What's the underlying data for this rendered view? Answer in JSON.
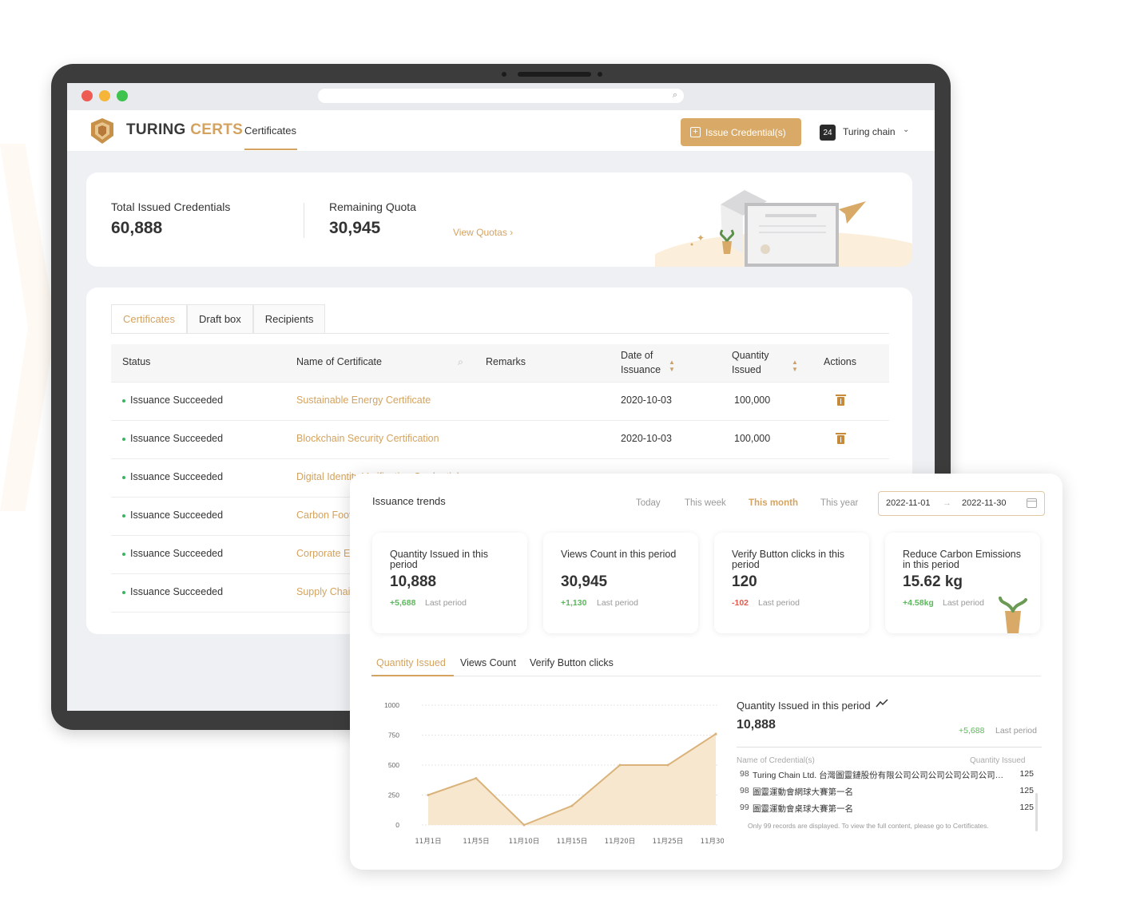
{
  "brand": {
    "name_part1": "TURING ",
    "name_part2": "CERTS",
    "accent_color": "#d4a35f"
  },
  "header": {
    "nav_tab": "Certificates",
    "issue_button": "Issue Credential(s)",
    "org_badge": "24",
    "org_name": "Turing chain"
  },
  "summary": {
    "total_label": "Total Issued Credentials",
    "total_value": "60,888",
    "remaining_label": "Remaining Quota",
    "remaining_value": "30,945",
    "view_quotas": "View Quotas ›"
  },
  "tabs": [
    "Certificates",
    "Draft box",
    "Recipients"
  ],
  "table": {
    "headers": {
      "status": "Status",
      "name": "Name of Certificate",
      "remarks": "Remarks",
      "date_line1": "Date of",
      "date_line2": "Issuance",
      "qty_line1": "Quantity",
      "qty_line2": "Issued",
      "actions": "Actions"
    },
    "rows": [
      {
        "status": "Issuance Succeeded",
        "name": "Sustainable Energy Certificate",
        "date": "2020-10-03",
        "qty": "100,000"
      },
      {
        "status": "Issuance Succeeded",
        "name": "Blockchain Security Certification",
        "date": "2020-10-03",
        "qty": "100,000"
      },
      {
        "status": "Issuance Succeeded",
        "name": "Digital Identity Verification Credential"
      },
      {
        "status": "Issuance Succeeded",
        "name": "Carbon Footprint Certificate"
      },
      {
        "status": "Issuance Succeeded",
        "name": "Corporate Excellence Award"
      },
      {
        "status": "Issuance Succeeded",
        "name": "Supply Chain Certificate"
      }
    ]
  },
  "panel": {
    "title": "Issuance trends",
    "ranges": [
      "Today",
      "This week",
      "This month",
      "This year"
    ],
    "active_range": "This month",
    "date_from": "2022-11-01",
    "date_sep": "→",
    "date_to": "2022-11-30",
    "metrics": [
      {
        "label": "Quantity Issued in this period",
        "value": "10,888",
        "delta": "+5,688",
        "last": "Last period",
        "delta_color": "#5cb85c"
      },
      {
        "label": "Views Count in this period",
        "value": "30,945",
        "delta": "+1,130",
        "last": "Last period",
        "delta_color": "#5cb85c"
      },
      {
        "label": "Verify Button clicks in this period",
        "value": "120",
        "delta": "-102",
        "last": "Last period",
        "delta_color": "#e05a4e"
      },
      {
        "label": "Reduce Carbon Emissions in this period",
        "value": "15.62 kg",
        "delta": "+4.58kg",
        "last": "Last period",
        "delta_color": "#5cb85c"
      }
    ],
    "chart_tabs": [
      "Quantity Issued",
      "Views Count",
      "Verify Button clicks"
    ],
    "right": {
      "title": "Quantity Issued in this period",
      "trend_icon": "trend-line-icon",
      "value": "10,888",
      "delta": "+5,688",
      "last": "Last period",
      "col_name": "Name of Credential(s)",
      "col_qty": "Quantity Issued",
      "rows": [
        {
          "rank": "98",
          "name": "Turing Chain Ltd. 台灣圖靈鏈股份有限公司公司公司公司公司公司…",
          "qty": "125"
        },
        {
          "rank": "98",
          "name": "圖靈運動會網球大賽第一名",
          "qty": "125"
        },
        {
          "rank": "99",
          "name": "圖靈運動會桌球大賽第一名",
          "qty": "125"
        }
      ],
      "note": "Only 99 records are displayed. To view the full content, please go to Certificates."
    }
  },
  "chart_data": {
    "type": "area",
    "x": [
      "11月1日",
      "11月5日",
      "11月10日",
      "11月15日",
      "11月20日",
      "11月25日",
      "11月30日"
    ],
    "series": [
      {
        "values": [
          250,
          390,
          0,
          160,
          500,
          500,
          760
        ]
      }
    ],
    "ylim": [
      0,
      1000
    ],
    "yticks": [
      1000,
      750,
      500,
      250,
      0
    ],
    "grid": true,
    "color": "#d9b37a"
  }
}
